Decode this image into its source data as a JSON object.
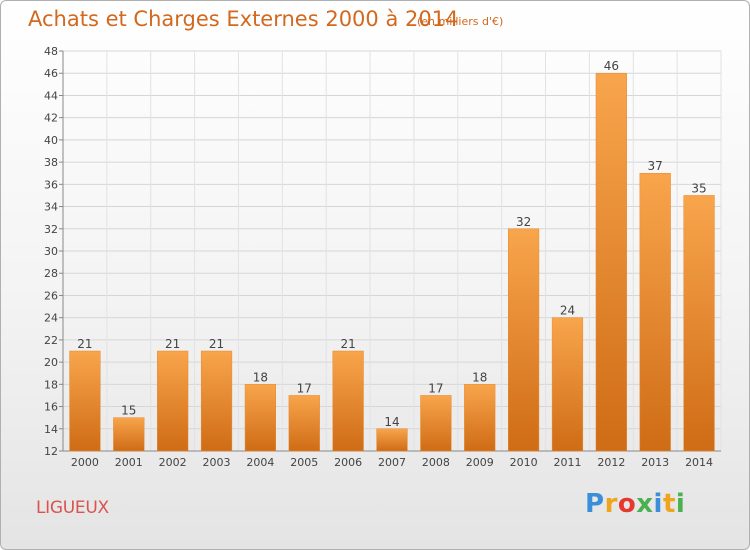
{
  "header": {
    "title": "Achats et Charges Externes 2000 à 2014",
    "unit": "(en milliers d'€)"
  },
  "footer": {
    "commune": "LIGUEUX",
    "logo": {
      "letters": [
        "P",
        "r",
        "o",
        "x",
        "i",
        "t",
        "i"
      ],
      "colors": [
        "#3a8fd8",
        "#f0a31c",
        "#e6382c",
        "#4caf50",
        "#3a8fd8",
        "#f0a31c",
        "#4caf50"
      ]
    }
  },
  "colors": {
    "bar_top": "#f8a54c",
    "bar_bottom": "#cf6c16",
    "accent": "#d2691e"
  },
  "chart_data": {
    "type": "bar",
    "title": "Achats et Charges Externes 2000 à 2014",
    "subtitle": "(en milliers d'€)",
    "categories": [
      "2000",
      "2001",
      "2002",
      "2003",
      "2004",
      "2005",
      "2006",
      "2007",
      "2008",
      "2009",
      "2010",
      "2011",
      "2012",
      "2013",
      "2014"
    ],
    "values": [
      21,
      15,
      21,
      21,
      18,
      17,
      21,
      14,
      17,
      18,
      32,
      24,
      46,
      37,
      35
    ],
    "ylim": [
      12,
      48
    ],
    "yticks": [
      12,
      14,
      16,
      18,
      20,
      22,
      24,
      26,
      28,
      30,
      32,
      34,
      36,
      38,
      40,
      42,
      44,
      46,
      48
    ],
    "grid": true,
    "xlabel": "",
    "ylabel": ""
  }
}
